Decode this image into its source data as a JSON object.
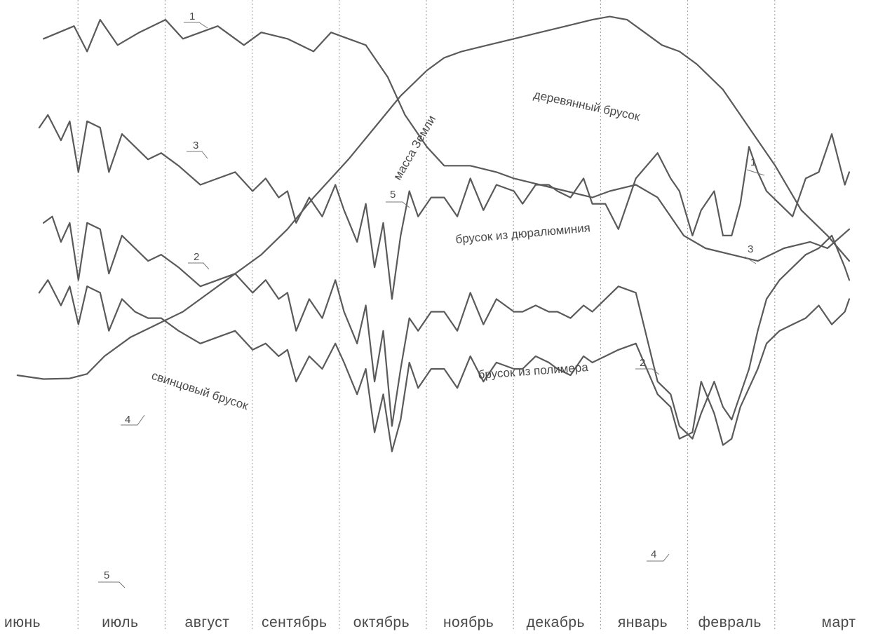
{
  "chart_data": {
    "type": "line",
    "title": "",
    "xlabel": "",
    "ylabel": "",
    "x_categories": [
      "июнь",
      "июль",
      "август",
      "сентябрь",
      "октябрь",
      "ноябрь",
      "декабрь",
      "январь",
      "февраль",
      "март"
    ],
    "grid": "vertical dashed month separators",
    "y_axis": "none (relative, curves stacked for readability)",
    "series": [
      {
        "name": "деревянный брусок",
        "number_label": "1",
        "offset": 0.0,
        "x": [
          0.5,
          0.85,
          1.0,
          1.15,
          1.35,
          1.6,
          1.9,
          2.1,
          2.5,
          2.8,
          3.0,
          3.3,
          3.6,
          3.8,
          4.0,
          4.2,
          4.45,
          4.65,
          4.9,
          5.1,
          5.4,
          5.7,
          5.9,
          6.2,
          6.5,
          6.8,
          7.0,
          7.3,
          7.55,
          7.85,
          8.1,
          8.4,
          8.7,
          9.0,
          9.3,
          9.5,
          9.75
        ],
        "y": [
          50,
          52,
          48,
          53,
          49,
          51,
          53,
          50,
          52,
          49,
          51,
          50,
          48,
          51,
          50,
          49,
          44,
          38,
          33,
          30,
          30,
          29,
          28,
          27,
          26,
          25,
          26,
          27,
          25,
          19,
          17,
          16,
          15,
          17,
          18,
          17,
          20
        ]
      },
      {
        "name": "брусок из дюралюминия",
        "number_label": "3",
        "offset": -9.0,
        "x": [
          0.45,
          0.55,
          0.7,
          0.8,
          0.9,
          1.0,
          1.15,
          1.25,
          1.4,
          1.55,
          1.7,
          1.85,
          2.05,
          2.3,
          2.5,
          2.7,
          2.9,
          3.05,
          3.2,
          3.3,
          3.4,
          3.55,
          3.7,
          3.85,
          3.95,
          4.1,
          4.2,
          4.3,
          4.4,
          4.5,
          4.6,
          4.7,
          4.8,
          4.95,
          5.1,
          5.25,
          5.4,
          5.55,
          5.7,
          5.9,
          6.0,
          6.15,
          6.3,
          6.4,
          6.55,
          6.7,
          6.8,
          6.95,
          7.1,
          7.3,
          7.55,
          7.7,
          7.8,
          7.95,
          8.05,
          8.2,
          8.3,
          8.4,
          8.5,
          8.6,
          8.7,
          8.8,
          8.95,
          9.1,
          9.25,
          9.4,
          9.55,
          9.7,
          9.75
        ],
        "y": [
          45,
          47,
          43,
          46,
          38,
          46,
          45,
          38,
          44,
          42,
          40,
          41,
          39,
          36,
          37,
          38,
          35,
          37,
          34,
          35,
          30,
          34,
          31,
          36,
          32,
          27,
          33,
          23,
          30,
          18,
          28,
          35,
          31,
          34,
          34,
          31,
          37,
          32,
          36,
          35,
          33,
          36,
          36,
          35,
          34,
          37,
          33,
          33,
          29,
          37,
          41,
          37,
          35,
          28,
          32,
          35,
          28,
          28,
          33,
          42,
          38,
          35,
          33,
          31,
          37,
          38,
          44,
          36,
          38
        ]
      },
      {
        "name": "брусок из полимера",
        "number_label": "2",
        "offset": -24.0,
        "x": [
          0.5,
          0.6,
          0.7,
          0.8,
          0.9,
          1.0,
          1.15,
          1.25,
          1.4,
          1.55,
          1.7,
          1.85,
          2.05,
          2.3,
          2.5,
          2.7,
          2.9,
          3.05,
          3.2,
          3.3,
          3.4,
          3.55,
          3.7,
          3.85,
          3.95,
          4.1,
          4.2,
          4.3,
          4.4,
          4.5,
          4.6,
          4.7,
          4.8,
          4.95,
          5.1,
          5.25,
          5.4,
          5.55,
          5.7,
          5.9,
          6.0,
          6.15,
          6.3,
          6.4,
          6.55,
          6.7,
          6.8,
          6.95,
          7.1,
          7.3,
          7.55,
          7.7,
          7.8,
          7.95,
          8.05,
          8.2,
          8.3,
          8.4,
          8.5,
          8.6,
          8.7,
          8.8,
          8.95,
          9.1,
          9.25,
          9.4,
          9.55,
          9.7,
          9.75
        ],
        "y": [
          45,
          46,
          42,
          45,
          36,
          45,
          44,
          37,
          43,
          41,
          39,
          40,
          38,
          35,
          36,
          37,
          34,
          36,
          33,
          34,
          28,
          33,
          30,
          36,
          31,
          26,
          32,
          20,
          28,
          13,
          22,
          30,
          28,
          31,
          31,
          28,
          34,
          29,
          33,
          31,
          31,
          32,
          31,
          31,
          30,
          32,
          31,
          33,
          35,
          34,
          20,
          18,
          13,
          11,
          15,
          20,
          16,
          14,
          18,
          22,
          28,
          33,
          36,
          38,
          40,
          41,
          43,
          38,
          36
        ]
      },
      {
        "name": "свинцовый брусок",
        "number_label": "4",
        "offset": -36.0,
        "x": [
          0.45,
          0.55,
          0.7,
          0.8,
          0.9,
          1.0,
          1.15,
          1.25,
          1.4,
          1.55,
          1.7,
          1.85,
          2.05,
          2.3,
          2.5,
          2.7,
          2.9,
          3.05,
          3.2,
          3.3,
          3.4,
          3.55,
          3.7,
          3.85,
          3.95,
          4.1,
          4.2,
          4.3,
          4.4,
          4.5,
          4.6,
          4.7,
          4.8,
          4.95,
          5.1,
          5.25,
          5.4,
          5.55,
          5.7,
          5.9,
          6.0,
          6.15,
          6.3,
          6.4,
          6.55,
          6.7,
          6.8,
          6.95,
          7.1,
          7.3,
          7.55,
          7.7,
          7.8,
          7.95,
          8.05,
          8.2,
          8.3,
          8.4,
          8.5,
          8.6,
          8.7,
          8.8,
          8.95,
          9.1,
          9.25,
          9.4,
          9.55,
          9.7,
          9.75
        ],
        "y": [
          46,
          48,
          44,
          47,
          41,
          47,
          46,
          40,
          45,
          43,
          42,
          42,
          40,
          38,
          39,
          40,
          37,
          38,
          36,
          37,
          32,
          36,
          34,
          38,
          35,
          30,
          34,
          24,
          30,
          21,
          26,
          35,
          31,
          34,
          34,
          31,
          36,
          32,
          35,
          34,
          34,
          36,
          35,
          34,
          33,
          36,
          35,
          36,
          37,
          38,
          30,
          28,
          23,
          24,
          32,
          27,
          22,
          23,
          28,
          31,
          34,
          38,
          40,
          41,
          42,
          44,
          41,
          43,
          45
        ]
      },
      {
        "name": "масса Земли",
        "number_label": "5",
        "offset": 0.0,
        "x": [
          0.2,
          0.5,
          0.8,
          1.0,
          1.2,
          1.5,
          1.8,
          2.1,
          2.4,
          2.7,
          3.0,
          3.3,
          3.6,
          4.0,
          4.3,
          4.6,
          4.9,
          5.1,
          5.3,
          5.6,
          5.9,
          6.2,
          6.5,
          6.8,
          7.0,
          7.2,
          7.4,
          7.6,
          7.8,
          8.0,
          8.3,
          8.6,
          8.9,
          9.2,
          9.5,
          9.75
        ],
        "y": [
          -3,
          -3.6,
          -3.5,
          -2.8,
          0,
          3,
          5,
          7,
          10,
          13,
          16,
          20,
          25,
          31,
          36,
          41,
          45,
          47,
          48,
          49,
          50,
          51,
          52,
          53,
          53.5,
          53,
          51,
          49,
          48,
          46,
          42,
          36,
          30,
          23,
          19,
          15
        ]
      }
    ],
    "annotations": [
      "деревянный брусок",
      "брусок из дюралюминия",
      "брусок из полимера",
      "свинцовый брусок",
      "масса Земли"
    ]
  }
}
